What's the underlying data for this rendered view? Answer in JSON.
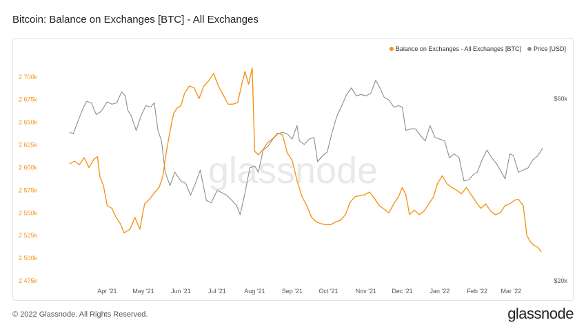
{
  "page": {
    "title": "Bitcoin: Balance on Exchanges [BTC] - All Exchanges",
    "copyright": "© 2022 Glassnode. All Rights Reserved.",
    "brand": "glassnode",
    "watermark": "glassnode"
  },
  "chart_data": {
    "type": "line",
    "title": "Bitcoin: Balance on Exchanges [BTC] - All Exchanges",
    "x_range": [
      "2021-03-01",
      "2022-03-27"
    ],
    "x_tick_labels": [
      {
        "label": "Apr '21",
        "date": "2021-04-01"
      },
      {
        "label": "May '21",
        "date": "2021-05-01"
      },
      {
        "label": "Jun '21",
        "date": "2021-06-01"
      },
      {
        "label": "Jul '21",
        "date": "2021-07-01"
      },
      {
        "label": "Aug '21",
        "date": "2021-08-01"
      },
      {
        "label": "Sep '21",
        "date": "2021-09-01"
      },
      {
        "label": "Oct '21",
        "date": "2021-10-01"
      },
      {
        "label": "Nov '21",
        "date": "2021-11-01"
      },
      {
        "label": "Dec '21",
        "date": "2021-12-01"
      },
      {
        "label": "Jan '22",
        "date": "2022-01-01"
      },
      {
        "label": "Feb '22",
        "date": "2022-02-01"
      },
      {
        "label": "Mar '22",
        "date": "2022-03-01"
      }
    ],
    "y_left": {
      "range": [
        2475000,
        2712000
      ],
      "ticks": [
        {
          "label": "2 475k",
          "value": 2475000
        },
        {
          "label": "2 500k",
          "value": 2500000
        },
        {
          "label": "2 525k",
          "value": 2525000
        },
        {
          "label": "2 550k",
          "value": 2550000
        },
        {
          "label": "2 575k",
          "value": 2575000
        },
        {
          "label": "2 600k",
          "value": 2600000
        },
        {
          "label": "2 625k",
          "value": 2625000
        },
        {
          "label": "2 650k",
          "value": 2650000
        },
        {
          "label": "2 675k",
          "value": 2675000
        },
        {
          "label": "2 700k",
          "value": 2700000
        }
      ],
      "color": "#f7931a"
    },
    "y_right": {
      "scale": "log",
      "range": [
        20000,
        73000
      ],
      "ticks": [
        {
          "label": "$20k",
          "value": 20000
        },
        {
          "label": "$60k",
          "value": 60000
        }
      ],
      "color": "#555555"
    },
    "grid": false,
    "legend_position": "top-right",
    "series": [
      {
        "name": "Balance on Exchanges - All Exchanges [BTC]",
        "axis": "left",
        "color": "#f7931a",
        "points": [
          [
            "2021-03-01",
            2604000
          ],
          [
            "2021-03-05",
            2607000
          ],
          [
            "2021-03-09",
            2603000
          ],
          [
            "2021-03-13",
            2611000
          ],
          [
            "2021-03-17",
            2600000
          ],
          [
            "2021-03-21",
            2609000
          ],
          [
            "2021-03-24",
            2612000
          ],
          [
            "2021-03-26",
            2590000
          ],
          [
            "2021-03-29",
            2580000
          ],
          [
            "2021-04-01",
            2558000
          ],
          [
            "2021-04-05",
            2555000
          ],
          [
            "2021-04-08",
            2546000
          ],
          [
            "2021-04-12",
            2538000
          ],
          [
            "2021-04-15",
            2528000
          ],
          [
            "2021-04-20",
            2532000
          ],
          [
            "2021-04-24",
            2545000
          ],
          [
            "2021-04-28",
            2532000
          ],
          [
            "2021-05-02",
            2560000
          ],
          [
            "2021-05-06",
            2565000
          ],
          [
            "2021-05-10",
            2572000
          ],
          [
            "2021-05-14",
            2578000
          ],
          [
            "2021-05-17",
            2590000
          ],
          [
            "2021-05-20",
            2618000
          ],
          [
            "2021-05-23",
            2640000
          ],
          [
            "2021-05-26",
            2660000
          ],
          [
            "2021-05-29",
            2666000
          ],
          [
            "2021-06-01",
            2668000
          ],
          [
            "2021-06-04",
            2682000
          ],
          [
            "2021-06-08",
            2690000
          ],
          [
            "2021-06-12",
            2688000
          ],
          [
            "2021-06-16",
            2676000
          ],
          [
            "2021-06-20",
            2690000
          ],
          [
            "2021-06-24",
            2696000
          ],
          [
            "2021-06-28",
            2704000
          ],
          [
            "2021-07-02",
            2690000
          ],
          [
            "2021-07-06",
            2680000
          ],
          [
            "2021-07-10",
            2670000
          ],
          [
            "2021-07-14",
            2670000
          ],
          [
            "2021-07-18",
            2672000
          ],
          [
            "2021-07-21",
            2690000
          ],
          [
            "2021-07-24",
            2706000
          ],
          [
            "2021-07-27",
            2692000
          ],
          [
            "2021-07-30",
            2710000
          ],
          [
            "2021-08-01",
            2618000
          ],
          [
            "2021-08-04",
            2614000
          ],
          [
            "2021-08-08",
            2620000
          ],
          [
            "2021-08-12",
            2628000
          ],
          [
            "2021-08-16",
            2632000
          ],
          [
            "2021-08-20",
            2638000
          ],
          [
            "2021-08-24",
            2636000
          ],
          [
            "2021-08-28",
            2616000
          ],
          [
            "2021-09-01",
            2608000
          ],
          [
            "2021-09-05",
            2586000
          ],
          [
            "2021-09-09",
            2568000
          ],
          [
            "2021-09-13",
            2558000
          ],
          [
            "2021-09-17",
            2545000
          ],
          [
            "2021-09-21",
            2540000
          ],
          [
            "2021-09-25",
            2538000
          ],
          [
            "2021-09-29",
            2537000
          ],
          [
            "2021-10-03",
            2537000
          ],
          [
            "2021-10-07",
            2540000
          ],
          [
            "2021-10-11",
            2542000
          ],
          [
            "2021-10-15",
            2548000
          ],
          [
            "2021-10-19",
            2562000
          ],
          [
            "2021-10-23",
            2568000
          ],
          [
            "2021-10-27",
            2569000
          ],
          [
            "2021-10-31",
            2570000
          ],
          [
            "2021-11-04",
            2573000
          ],
          [
            "2021-11-08",
            2566000
          ],
          [
            "2021-11-12",
            2558000
          ],
          [
            "2021-11-16",
            2554000
          ],
          [
            "2021-11-20",
            2550000
          ],
          [
            "2021-11-24",
            2560000
          ],
          [
            "2021-11-28",
            2568000
          ],
          [
            "2021-12-01",
            2578000
          ],
          [
            "2021-12-04",
            2570000
          ],
          [
            "2021-12-07",
            2548000
          ],
          [
            "2021-12-11",
            2553000
          ],
          [
            "2021-12-15",
            2548000
          ],
          [
            "2021-12-19",
            2552000
          ],
          [
            "2021-12-23",
            2560000
          ],
          [
            "2021-12-27",
            2568000
          ],
          [
            "2021-12-30",
            2582000
          ],
          [
            "2022-01-03",
            2591000
          ],
          [
            "2022-01-07",
            2582000
          ],
          [
            "2022-01-11",
            2578000
          ],
          [
            "2022-01-15",
            2575000
          ],
          [
            "2022-01-19",
            2571000
          ],
          [
            "2022-01-23",
            2578000
          ],
          [
            "2022-01-27",
            2570000
          ],
          [
            "2022-02-01",
            2560000
          ],
          [
            "2022-02-04",
            2555000
          ],
          [
            "2022-02-08",
            2560000
          ],
          [
            "2022-02-12",
            2552000
          ],
          [
            "2022-02-16",
            2548000
          ],
          [
            "2022-02-20",
            2550000
          ],
          [
            "2022-02-24",
            2558000
          ],
          [
            "2022-02-28",
            2560000
          ],
          [
            "2022-03-04",
            2564000
          ],
          [
            "2022-03-07",
            2565000
          ],
          [
            "2022-03-11",
            2558000
          ],
          [
            "2022-03-14",
            2525000
          ],
          [
            "2022-03-17",
            2518000
          ],
          [
            "2022-03-20",
            2514000
          ],
          [
            "2022-03-23",
            2512000
          ],
          [
            "2022-03-26",
            2507000
          ]
        ]
      },
      {
        "name": "Price [USD]",
        "axis": "right",
        "color": "#8c8c8c",
        "points": [
          [
            "2021-03-01",
            49000
          ],
          [
            "2021-03-04",
            48500
          ],
          [
            "2021-03-08",
            52500
          ],
          [
            "2021-03-12",
            56500
          ],
          [
            "2021-03-15",
            59000
          ],
          [
            "2021-03-19",
            58500
          ],
          [
            "2021-03-23",
            54500
          ],
          [
            "2021-03-27",
            55500
          ],
          [
            "2021-04-01",
            58800
          ],
          [
            "2021-04-05",
            58000
          ],
          [
            "2021-04-09",
            58500
          ],
          [
            "2021-04-13",
            62500
          ],
          [
            "2021-04-16",
            61000
          ],
          [
            "2021-04-18",
            56000
          ],
          [
            "2021-04-21",
            54000
          ],
          [
            "2021-04-25",
            49500
          ],
          [
            "2021-04-29",
            54000
          ],
          [
            "2021-05-03",
            57500
          ],
          [
            "2021-05-07",
            57000
          ],
          [
            "2021-05-10",
            58500
          ],
          [
            "2021-05-13",
            49500
          ],
          [
            "2021-05-16",
            46500
          ],
          [
            "2021-05-19",
            38500
          ],
          [
            "2021-05-23",
            35500
          ],
          [
            "2021-05-27",
            38500
          ],
          [
            "2021-06-01",
            36500
          ],
          [
            "2021-06-05",
            36000
          ],
          [
            "2021-06-09",
            33500
          ],
          [
            "2021-06-13",
            36000
          ],
          [
            "2021-06-17",
            39000
          ],
          [
            "2021-06-22",
            32500
          ],
          [
            "2021-06-26",
            32000
          ],
          [
            "2021-07-01",
            34500
          ],
          [
            "2021-07-05",
            34000
          ],
          [
            "2021-07-09",
            33500
          ],
          [
            "2021-07-13",
            32500
          ],
          [
            "2021-07-17",
            31500
          ],
          [
            "2021-07-20",
            29800
          ],
          [
            "2021-07-24",
            34000
          ],
          [
            "2021-07-28",
            39500
          ],
          [
            "2021-08-01",
            40000
          ],
          [
            "2021-08-04",
            38500
          ],
          [
            "2021-08-08",
            44000
          ],
          [
            "2021-08-12",
            45000
          ],
          [
            "2021-08-16",
            47000
          ],
          [
            "2021-08-20",
            48500
          ],
          [
            "2021-08-24",
            49000
          ],
          [
            "2021-08-28",
            48500
          ],
          [
            "2021-09-01",
            47000
          ],
          [
            "2021-09-05",
            51000
          ],
          [
            "2021-09-07",
            46500
          ],
          [
            "2021-09-11",
            45500
          ],
          [
            "2021-09-15",
            47000
          ],
          [
            "2021-09-19",
            47500
          ],
          [
            "2021-09-22",
            41000
          ],
          [
            "2021-09-26",
            42500
          ],
          [
            "2021-09-30",
            43500
          ],
          [
            "2021-10-04",
            49000
          ],
          [
            "2021-10-08",
            54000
          ],
          [
            "2021-10-12",
            57500
          ],
          [
            "2021-10-16",
            61500
          ],
          [
            "2021-10-20",
            64000
          ],
          [
            "2021-10-24",
            61000
          ],
          [
            "2021-10-28",
            61500
          ],
          [
            "2021-11-01",
            61000
          ],
          [
            "2021-11-05",
            62000
          ],
          [
            "2021-11-09",
            67000
          ],
          [
            "2021-11-12",
            64500
          ],
          [
            "2021-11-16",
            60500
          ],
          [
            "2021-11-20",
            59500
          ],
          [
            "2021-11-24",
            57000
          ],
          [
            "2021-11-28",
            57500
          ],
          [
            "2021-12-01",
            57000
          ],
          [
            "2021-12-04",
            49500
          ],
          [
            "2021-12-08",
            50000
          ],
          [
            "2021-12-12",
            50000
          ],
          [
            "2021-12-16",
            48000
          ],
          [
            "2021-12-20",
            46500
          ],
          [
            "2021-12-24",
            51000
          ],
          [
            "2021-12-28",
            47500
          ],
          [
            "2022-01-01",
            47000
          ],
          [
            "2022-01-05",
            46500
          ],
          [
            "2022-01-09",
            42000
          ],
          [
            "2022-01-13",
            43000
          ],
          [
            "2022-01-17",
            42000
          ],
          [
            "2022-01-21",
            36500
          ],
          [
            "2022-01-25",
            36800
          ],
          [
            "2022-01-29",
            38000
          ],
          [
            "2022-02-01",
            38500
          ],
          [
            "2022-02-05",
            41500
          ],
          [
            "2022-02-09",
            44000
          ],
          [
            "2022-02-13",
            42000
          ],
          [
            "2022-02-17",
            40500
          ],
          [
            "2022-02-21",
            38500
          ],
          [
            "2022-02-24",
            37000
          ],
          [
            "2022-02-28",
            43000
          ],
          [
            "2022-03-03",
            42500
          ],
          [
            "2022-03-07",
            38500
          ],
          [
            "2022-03-11",
            39000
          ],
          [
            "2022-03-15",
            39500
          ],
          [
            "2022-03-19",
            41500
          ],
          [
            "2022-03-23",
            42500
          ],
          [
            "2022-03-27",
            44500
          ]
        ]
      }
    ]
  }
}
